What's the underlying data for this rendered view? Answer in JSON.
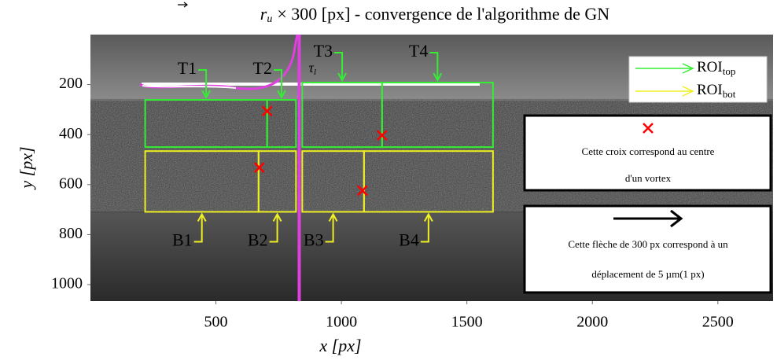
{
  "chart_data": {
    "type": "image-annotation",
    "title_symbol": "r",
    "title_subscript": "u",
    "title": "× 300 [px] - convergence de l'algorithme de GN",
    "xlabel": "x [px]",
    "ylabel": "y [px]",
    "xlim": [
      0,
      2720
    ],
    "ylim": [
      0,
      1066
    ],
    "y_inverted": true,
    "xticks": [
      500,
      1000,
      1500,
      2000,
      2500
    ],
    "yticks": [
      200,
      400,
      600,
      800,
      1000
    ],
    "regions": [
      {
        "name": "T1",
        "color": "#33ee33",
        "side": "top",
        "x": [
          218,
          704
        ],
        "y": [
          261,
          450
        ]
      },
      {
        "name": "T2",
        "color": "#33ee33",
        "side": "top",
        "x": [
          704,
          819
        ],
        "y": [
          261,
          450
        ]
      },
      {
        "name": "T3",
        "color": "#33ee33",
        "side": "top",
        "x": [
          844,
          1162
        ],
        "y": [
          192,
          450
        ]
      },
      {
        "name": "T4",
        "color": "#33ee33",
        "side": "top",
        "x": [
          1162,
          1604
        ],
        "y": [
          192,
          450
        ]
      },
      {
        "name": "B1",
        "color": "#eeee22",
        "side": "bottom",
        "x": [
          218,
          670
        ],
        "y": [
          466,
          709
        ]
      },
      {
        "name": "B2",
        "color": "#eeee22",
        "side": "bottom",
        "x": [
          670,
          819
        ],
        "y": [
          466,
          709
        ]
      },
      {
        "name": "B3",
        "color": "#eeee22",
        "side": "bottom",
        "x": [
          844,
          1090
        ],
        "y": [
          466,
          709
        ]
      },
      {
        "name": "B4",
        "color": "#eeee22",
        "side": "bottom",
        "x": [
          1090,
          1604
        ],
        "y": [
          466,
          709
        ]
      }
    ],
    "vortex_centers": {
      "color": "#ff0000",
      "x": [
        704,
        673,
        1162,
        1084
      ],
      "y": [
        306,
        532,
        403,
        624
      ]
    },
    "vertical_line": {
      "x": 832,
      "color": "#e040e0"
    },
    "tau_symbol": "τ",
    "tau_subscript": "l",
    "series": [
      {
        "name": "ROI",
        "subscript": "top",
        "color": "#33ee33"
      },
      {
        "name": "ROI",
        "subscript": "bot",
        "color": "#eeee22"
      }
    ],
    "notes": [
      {
        "lines": [
          "Cette croix correspond au centre",
          "d'un vortex"
        ]
      },
      {
        "lines": [
          "Cette flèche de 300 px correspond à un",
          "déplacement de 5 µm(1 px)"
        ]
      }
    ]
  }
}
